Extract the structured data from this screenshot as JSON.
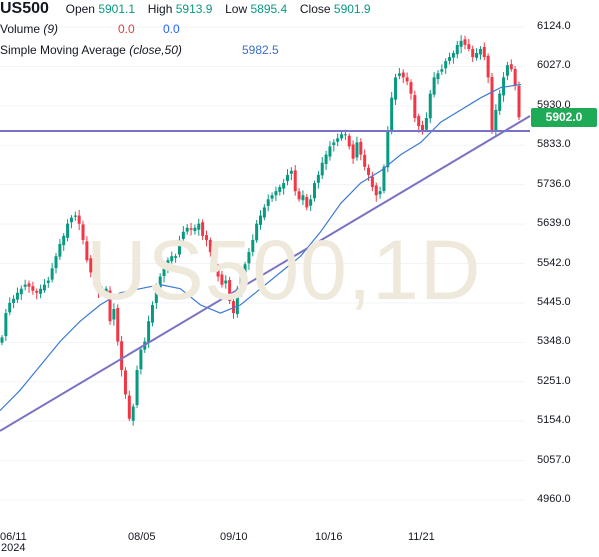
{
  "legend": {
    "symbol": "US500",
    "open_label": "Open",
    "open_value": "5901.1",
    "high_label": "High",
    "high_value": "5913.9",
    "low_label": "Low",
    "low_value": "5895.4",
    "close_label": "Close",
    "close_value": "5901.9",
    "volume_label": "Volume",
    "volume_param": "(9)",
    "volume_value_1": "0.0",
    "volume_value_2": "0.0",
    "sma_label": "Simple Moving Average",
    "sma_param": "(close,50)",
    "sma_value": "5982.5"
  },
  "watermark": "US500,1D",
  "price_badge": "5902.0",
  "colors": {
    "up": "#089981",
    "down": "#f23645",
    "sma": "#3a7bd5",
    "trendline": "#7a72c4",
    "badge": "#1faa55"
  },
  "chart_data": {
    "type": "candlestick",
    "symbol": "US500",
    "interval": "1D",
    "y_ticks": [
      4960.0,
      5057.0,
      5154.0,
      5251.0,
      5348.0,
      5445.0,
      5542.0,
      5639.0,
      5736.0,
      5833.0,
      5930.0,
      6027.0,
      6124.0
    ],
    "ylim": [
      4912,
      6147
    ],
    "x_ticks": [
      "06/11",
      "08/05",
      "09/10",
      "10/16",
      "11/21"
    ],
    "x_year_label": "2024",
    "last_price": 5902.0,
    "close_series": [
      5360,
      5420,
      5445,
      5455,
      5470,
      5480,
      5490,
      5485,
      5475,
      5470,
      5480,
      5490,
      5500,
      5530,
      5560,
      5590,
      5610,
      5640,
      5655,
      5660,
      5640,
      5600,
      5550,
      5520,
      5490,
      5470,
      5475,
      5480,
      5400,
      5430,
      5350,
      5280,
      5220,
      5160,
      5190,
      5280,
      5330,
      5350,
      5400,
      5440,
      5480,
      5510,
      5530,
      5550,
      5560,
      5560,
      5600,
      5620,
      5630,
      5625,
      5630,
      5640,
      5610,
      5600,
      5570,
      5530,
      5510,
      5490,
      5500,
      5450,
      5420,
      5480,
      5510,
      5540,
      5570,
      5600,
      5640,
      5660,
      5680,
      5700,
      5710,
      5720,
      5730,
      5740,
      5760,
      5770,
      5720,
      5700,
      5710,
      5680,
      5700,
      5740,
      5760,
      5790,
      5810,
      5830,
      5840,
      5850,
      5860,
      5860,
      5830,
      5800,
      5840,
      5810,
      5780,
      5760,
      5730,
      5710,
      5720,
      5780,
      5870,
      5950,
      6000,
      6010,
      6000,
      5990,
      5960,
      5900,
      5880,
      5870,
      5900,
      5960,
      6000,
      6010,
      6020,
      6040,
      6050,
      6060,
      6080,
      6090,
      6080,
      6070,
      6050,
      6060,
      6070,
      6050,
      6000,
      5870,
      5920,
      5960,
      6000,
      6030,
      6020,
      5980,
      5901.9
    ],
    "sma50_series": [
      5180,
      5230,
      5290,
      5350,
      5400,
      5440,
      5470,
      5480,
      5490,
      5480,
      5440,
      5420,
      5440,
      5480,
      5520,
      5560,
      5620,
      5690,
      5740,
      5770,
      5810,
      5840,
      5890,
      5920,
      5950,
      5975,
      5982.5
    ],
    "trendlines": [
      {
        "from": {
          "x": "2024-05-30",
          "y": 5130
        },
        "to": {
          "x": "2024-12-20",
          "y": 5905
        }
      },
      {
        "y": 5868
      }
    ]
  }
}
